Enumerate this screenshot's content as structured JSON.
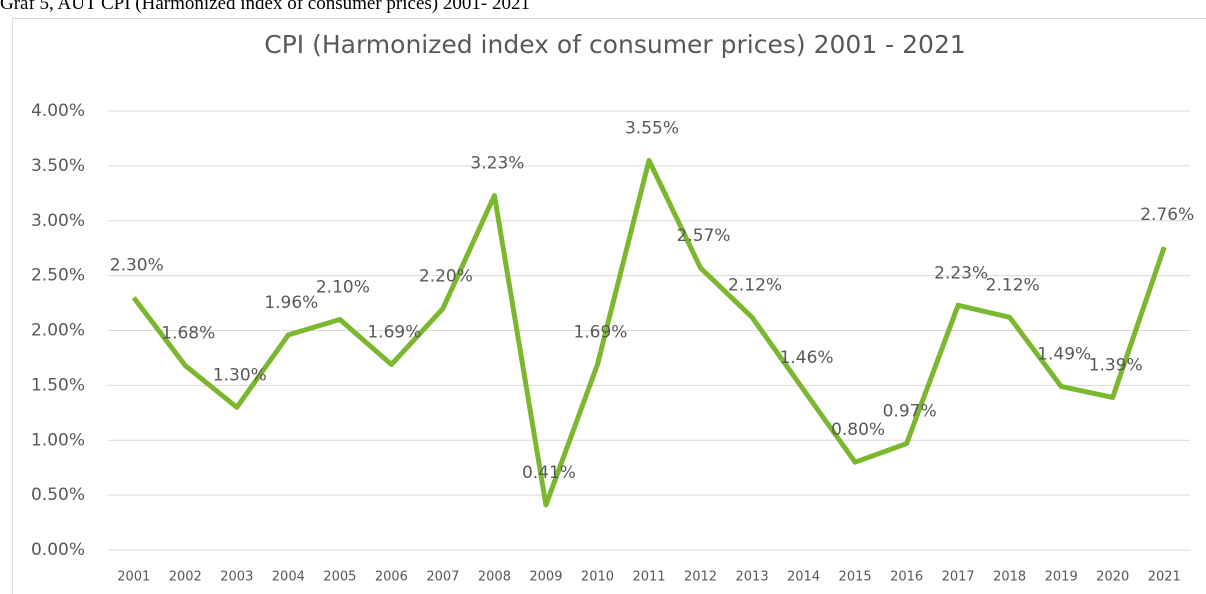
{
  "caption": "Graf 5, AUT CPI (Harmonized index of consumer prices) 2001- 2021",
  "chart_data": {
    "type": "line",
    "title": "CPI (Harmonized index of consumer prices) 2001 - 2021",
    "categories": [
      "2001",
      "2002",
      "2003",
      "2004",
      "2005",
      "2006",
      "2007",
      "2008",
      "2009",
      "2010",
      "2011",
      "2012",
      "2013",
      "2014",
      "2015",
      "2016",
      "2017",
      "2018",
      "2019",
      "2020",
      "2021"
    ],
    "series": [
      {
        "color": "#7cb82f",
        "values": [
          2.3,
          1.68,
          1.3,
          1.96,
          2.1,
          1.69,
          2.2,
          3.23,
          0.41,
          1.69,
          3.55,
          2.57,
          2.12,
          1.46,
          0.8,
          0.97,
          2.23,
          2.12,
          1.49,
          1.39,
          2.76
        ],
        "value_labels": [
          "2.30%",
          "1.68%",
          "1.30%",
          "1.96%",
          "2.10%",
          "1.69%",
          "2.20%",
          "3.23%",
          "0.41%",
          "1.69%",
          "3.55%",
          "2.57%",
          "2.12%",
          "1.46%",
          "0.80%",
          "0.97%",
          "2.23%",
          "2.12%",
          "1.49%",
          "1.39%",
          "2.76%"
        ]
      }
    ],
    "ylim": [
      0,
      4
    ],
    "yticks": [
      {
        "value": 0,
        "label": "0.00%"
      },
      {
        "value": 0.5,
        "label": "0.50%"
      },
      {
        "value": 1,
        "label": "1.00%"
      },
      {
        "value": 1.5,
        "label": "1.50%"
      },
      {
        "value": 2,
        "label": "2.00%"
      },
      {
        "value": 2.5,
        "label": "2.50%"
      },
      {
        "value": 3,
        "label": "3.00%"
      },
      {
        "value": 3.5,
        "label": "3.50%"
      },
      {
        "value": 4,
        "label": "4.00%"
      }
    ],
    "grid": true
  }
}
